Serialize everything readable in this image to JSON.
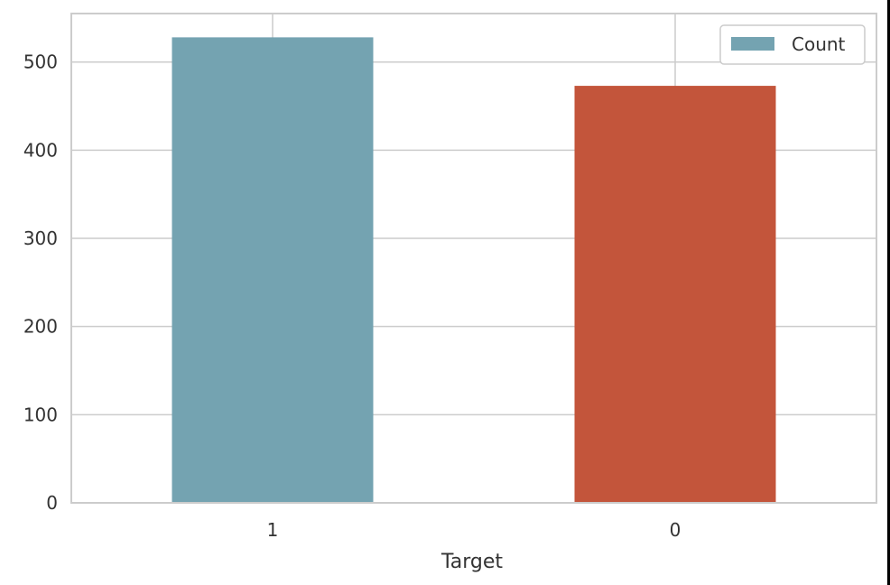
{
  "chart_data": {
    "type": "bar",
    "categories": [
      "1",
      "0"
    ],
    "series": [
      {
        "name": "Count",
        "values": [
          528,
          473
        ]
      }
    ],
    "bar_colors": [
      "#74a3b1",
      "#c3553b"
    ],
    "title": "",
    "xlabel": "Target",
    "ylabel": "",
    "ylim": [
      0,
      555
    ],
    "yticks": [
      0,
      100,
      200,
      300,
      400,
      500
    ],
    "grid": true,
    "legend": {
      "position": "top-right",
      "entries": [
        "Count"
      ]
    }
  }
}
